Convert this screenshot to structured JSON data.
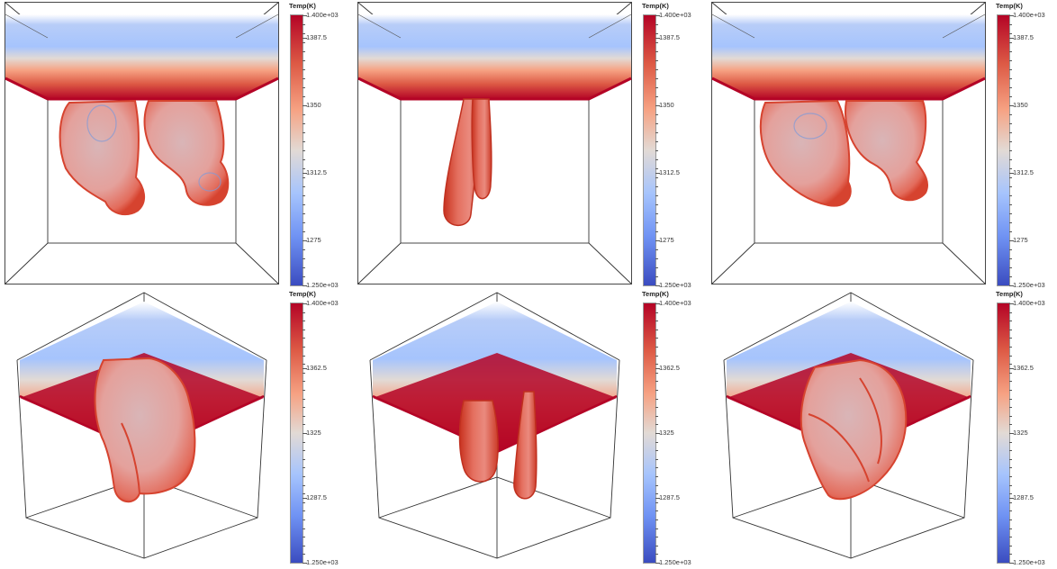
{
  "panels": [
    {
      "id": "top-left",
      "view": "front",
      "shape": "two-blobs",
      "colorbar": {
        "title": "Temp(K)",
        "labels": [
          "1.400e+03",
          "1387.5",
          "1350",
          "1312.5",
          "1275",
          "1.250e+03"
        ],
        "values": [
          1400,
          1387.5,
          1350,
          1312.5,
          1275,
          1250
        ]
      }
    },
    {
      "id": "top-middle",
      "view": "front",
      "shape": "one-finger",
      "colorbar": {
        "title": "Temp(K)",
        "labels": [
          "1.400e+03",
          "1387.5",
          "1350",
          "1312.5",
          "1275",
          "1.250e+03"
        ],
        "values": [
          1400,
          1387.5,
          1350,
          1312.5,
          1275,
          1250
        ]
      }
    },
    {
      "id": "top-right",
      "view": "front",
      "shape": "two-blobs-wide",
      "colorbar": {
        "title": "Temp(K)",
        "labels": [
          "1.400e+03",
          "1387.5",
          "1350",
          "1312.5",
          "1275",
          "1.250e+03"
        ],
        "values": [
          1400,
          1387.5,
          1350,
          1312.5,
          1275,
          1250
        ]
      }
    },
    {
      "id": "bottom-left",
      "view": "isometric",
      "shape": "two-blobs",
      "colorbar": {
        "title": "Temp(K)",
        "labels": [
          "1.400e+03",
          "1362.5",
          "1325",
          "1287.5",
          "1.250e+03"
        ],
        "values": [
          1400,
          1362.5,
          1325,
          1287.5,
          1250
        ]
      }
    },
    {
      "id": "bottom-middle",
      "view": "isometric",
      "shape": "two-fingers",
      "colorbar": {
        "title": "Temp(K)",
        "labels": [
          "1.400e+03",
          "1362.5",
          "1325",
          "1287.5",
          "1.250e+03"
        ],
        "values": [
          1400,
          1362.5,
          1325,
          1287.5,
          1250
        ]
      }
    },
    {
      "id": "bottom-right",
      "view": "isometric",
      "shape": "large-blob",
      "colorbar": {
        "title": "Temp(K)",
        "labels": [
          "1.400e+03",
          "1362.5",
          "1325",
          "1287.5",
          "1.250e+03"
        ],
        "values": [
          1400,
          1362.5,
          1325,
          1287.5,
          1250
        ]
      }
    }
  ],
  "colormap": {
    "hot": "#b40426",
    "mid": "#e2dad5",
    "cold": "#3b4cc0",
    "plume_fill": "#e08a80",
    "plume_edge": "#d6432f"
  }
}
